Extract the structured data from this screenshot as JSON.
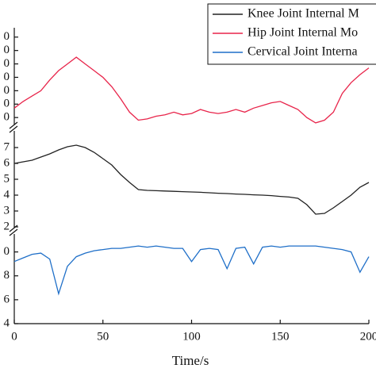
{
  "chart_data": [
    {
      "type": "line",
      "x": [
        0,
        5,
        10,
        15,
        20,
        25,
        30,
        35,
        40,
        45,
        50,
        55,
        60,
        65,
        70,
        75,
        80,
        85,
        90,
        95,
        100,
        105,
        110,
        115,
        120,
        125,
        130,
        135,
        140,
        145,
        150,
        155,
        160,
        165,
        170,
        175,
        180,
        185,
        190,
        195,
        200
      ],
      "series": [
        {
          "name": "Hip Joint Internal Mo",
          "color": "#e8244a",
          "values": [
            17,
            22,
            26,
            30,
            38,
            45,
            50,
            55,
            50,
            45,
            40,
            33,
            24,
            14,
            8,
            9,
            11,
            12,
            14,
            12,
            13,
            16,
            14,
            13,
            14,
            16,
            14,
            17,
            19,
            21,
            22,
            19,
            16,
            10,
            6,
            8,
            14,
            28,
            36,
            42,
            47
          ]
        }
      ],
      "ylim": [
        3,
        74
      ],
      "yticks": [
        {
          "value": 70,
          "label": "0"
        },
        {
          "value": 60,
          "label": "0"
        },
        {
          "value": 50,
          "label": "0"
        },
        {
          "value": 40,
          "label": "0"
        },
        {
          "value": 30,
          "label": "0"
        },
        {
          "value": 20,
          "label": "0"
        },
        {
          "value": 10,
          "label": "0"
        }
      ]
    },
    {
      "type": "line",
      "x": [
        0,
        5,
        10,
        15,
        20,
        25,
        30,
        35,
        40,
        45,
        50,
        55,
        60,
        65,
        70,
        75,
        80,
        85,
        90,
        95,
        100,
        105,
        110,
        115,
        120,
        125,
        130,
        135,
        140,
        145,
        150,
        155,
        160,
        165,
        170,
        175,
        180,
        185,
        190,
        195,
        200
      ],
      "series": [
        {
          "name": "Knee Joint Internal M",
          "color": "#222222",
          "values": [
            6.0,
            6.1,
            6.2,
            6.4,
            6.6,
            6.85,
            7.05,
            7.15,
            7.0,
            6.7,
            6.3,
            5.9,
            5.3,
            4.8,
            4.35,
            4.3,
            4.28,
            4.26,
            4.24,
            4.22,
            4.2,
            4.18,
            4.15,
            4.12,
            4.1,
            4.07,
            4.05,
            4.02,
            4.0,
            3.97,
            3.92,
            3.88,
            3.8,
            3.4,
            2.8,
            2.85,
            3.2,
            3.6,
            4.0,
            4.5,
            4.8
          ]
        }
      ],
      "ylim": [
        1.8,
        8.05
      ],
      "yticks": [
        7,
        6,
        5,
        4,
        3,
        2
      ]
    },
    {
      "type": "line",
      "x": [
        0,
        5,
        10,
        15,
        20,
        25,
        30,
        35,
        40,
        45,
        50,
        55,
        60,
        65,
        70,
        75,
        80,
        85,
        90,
        95,
        100,
        105,
        110,
        115,
        120,
        125,
        130,
        135,
        140,
        145,
        150,
        155,
        160,
        165,
        170,
        175,
        180,
        185,
        190,
        195,
        200
      ],
      "series": [
        {
          "name": "Cervical Joint Interna",
          "color": "#1f6fc8",
          "values": [
            9.2,
            9.5,
            9.8,
            9.9,
            9.4,
            6.5,
            8.8,
            9.6,
            9.9,
            10.1,
            10.2,
            10.3,
            10.3,
            10.4,
            10.5,
            10.4,
            10.5,
            10.4,
            10.3,
            10.3,
            9.2,
            10.2,
            10.3,
            10.2,
            8.6,
            10.3,
            10.4,
            9.0,
            10.4,
            10.5,
            10.4,
            10.5,
            10.5,
            10.5,
            10.5,
            10.4,
            10.3,
            10.2,
            10.0,
            8.3,
            9.6
          ]
        }
      ],
      "ylim": [
        4,
        11.5
      ],
      "yticks": [
        {
          "value": 10,
          "label": "0"
        },
        8,
        6,
        4
      ],
      "xlim": [
        0,
        200
      ],
      "xticks": [
        0,
        50,
        100,
        150,
        200
      ],
      "xlabel": "Time/s"
    }
  ]
}
